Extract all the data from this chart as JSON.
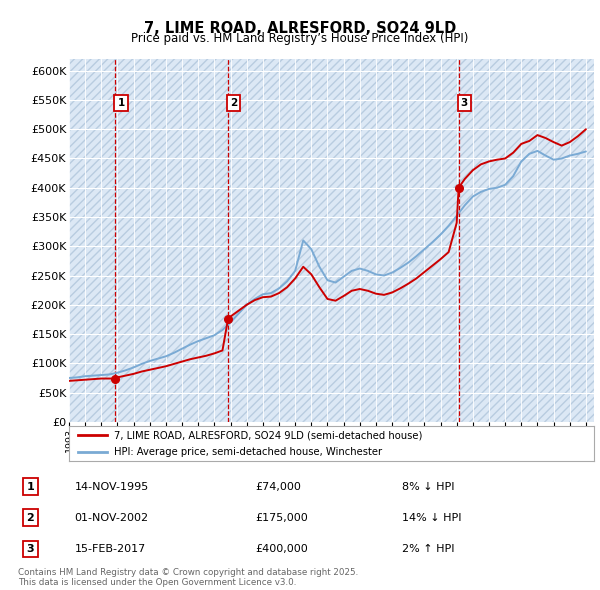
{
  "title": "7, LIME ROAD, ALRESFORD, SO24 9LD",
  "subtitle": "Price paid vs. HM Land Registry’s House Price Index (HPI)",
  "ylim": [
    0,
    620000
  ],
  "yticks": [
    0,
    50000,
    100000,
    150000,
    200000,
    250000,
    300000,
    350000,
    400000,
    450000,
    500000,
    550000,
    600000
  ],
  "ytick_labels": [
    "£0",
    "£50K",
    "£100K",
    "£150K",
    "£200K",
    "£250K",
    "£300K",
    "£350K",
    "£400K",
    "£450K",
    "£500K",
    "£550K",
    "£600K"
  ],
  "hpi_color": "#7aaad4",
  "price_color": "#cc0000",
  "background_color": "#dce8f5",
  "grid_color": "#ffffff",
  "vline_color": "#cc0000",
  "transactions": [
    {
      "date_num": 1995.87,
      "price": 74000,
      "label": "1",
      "date_str": "14-NOV-1995",
      "relation": "8% ↓ HPI"
    },
    {
      "date_num": 2002.84,
      "price": 175000,
      "label": "2",
      "date_str": "01-NOV-2002",
      "relation": "14% ↓ HPI"
    },
    {
      "date_num": 2017.12,
      "price": 400000,
      "label": "3",
      "date_str": "15-FEB-2017",
      "relation": "2% ↑ HPI"
    }
  ],
  "legend_entries": [
    "7, LIME ROAD, ALRESFORD, SO24 9LD (semi-detached house)",
    "HPI: Average price, semi-detached house, Winchester"
  ],
  "footer": "Contains HM Land Registry data © Crown copyright and database right 2025.\nThis data is licensed under the Open Government Licence v3.0.",
  "hpi_x": [
    1993.0,
    1993.5,
    1994.0,
    1994.5,
    1995.0,
    1995.5,
    1996.0,
    1996.5,
    1997.0,
    1997.5,
    1998.0,
    1998.5,
    1999.0,
    1999.5,
    2000.0,
    2000.5,
    2001.0,
    2001.5,
    2002.0,
    2002.5,
    2003.0,
    2003.5,
    2004.0,
    2004.5,
    2005.0,
    2005.5,
    2006.0,
    2006.5,
    2007.0,
    2007.5,
    2008.0,
    2008.5,
    2009.0,
    2009.5,
    2010.0,
    2010.5,
    2011.0,
    2011.5,
    2012.0,
    2012.5,
    2013.0,
    2013.5,
    2014.0,
    2014.5,
    2015.0,
    2015.5,
    2016.0,
    2016.5,
    2017.0,
    2017.5,
    2018.0,
    2018.5,
    2019.0,
    2019.5,
    2020.0,
    2020.5,
    2021.0,
    2021.5,
    2022.0,
    2022.5,
    2023.0,
    2023.5,
    2024.0,
    2024.5,
    2025.0
  ],
  "hpi_y": [
    75000,
    76000,
    78000,
    79000,
    80000,
    81000,
    84000,
    88000,
    93000,
    99000,
    104000,
    108000,
    112000,
    118000,
    125000,
    132000,
    138000,
    143000,
    148000,
    157000,
    170000,
    185000,
    200000,
    210000,
    218000,
    220000,
    228000,
    240000,
    258000,
    310000,
    295000,
    265000,
    242000,
    238000,
    248000,
    258000,
    262000,
    258000,
    252000,
    250000,
    255000,
    263000,
    272000,
    283000,
    295000,
    307000,
    320000,
    335000,
    352000,
    370000,
    385000,
    393000,
    398000,
    400000,
    405000,
    420000,
    445000,
    458000,
    463000,
    455000,
    448000,
    450000,
    455000,
    458000,
    462000
  ],
  "price_x": [
    1993.0,
    1993.5,
    1994.0,
    1994.5,
    1995.0,
    1995.5,
    1995.87,
    1996.0,
    1996.5,
    1997.0,
    1997.5,
    1998.0,
    1998.5,
    1999.0,
    1999.5,
    2000.0,
    2000.5,
    2001.0,
    2001.5,
    2002.0,
    2002.5,
    2002.84,
    2003.0,
    2003.5,
    2004.0,
    2004.5,
    2005.0,
    2005.5,
    2006.0,
    2006.5,
    2007.0,
    2007.5,
    2008.0,
    2008.5,
    2009.0,
    2009.5,
    2010.0,
    2010.5,
    2011.0,
    2011.5,
    2012.0,
    2012.5,
    2013.0,
    2013.5,
    2014.0,
    2014.5,
    2015.0,
    2015.5,
    2016.0,
    2016.5,
    2017.0,
    2017.12,
    2017.5,
    2018.0,
    2018.5,
    2019.0,
    2019.5,
    2020.0,
    2020.5,
    2021.0,
    2021.5,
    2022.0,
    2022.5,
    2023.0,
    2023.5,
    2024.0,
    2024.5,
    2025.0
  ],
  "price_y": [
    70000,
    71000,
    72000,
    73000,
    74000,
    74000,
    74000,
    76000,
    79000,
    82000,
    86000,
    89000,
    92000,
    95000,
    99000,
    103000,
    107000,
    110000,
    113000,
    117000,
    122000,
    175000,
    180000,
    190000,
    200000,
    208000,
    213000,
    214000,
    220000,
    230000,
    245000,
    265000,
    252000,
    230000,
    210000,
    207000,
    215000,
    224000,
    227000,
    224000,
    219000,
    217000,
    221000,
    228000,
    236000,
    245000,
    256000,
    267000,
    278000,
    290000,
    340000,
    400000,
    415000,
    430000,
    440000,
    445000,
    448000,
    450000,
    460000,
    475000,
    480000,
    490000,
    485000,
    478000,
    472000,
    478000,
    488000,
    500000
  ]
}
